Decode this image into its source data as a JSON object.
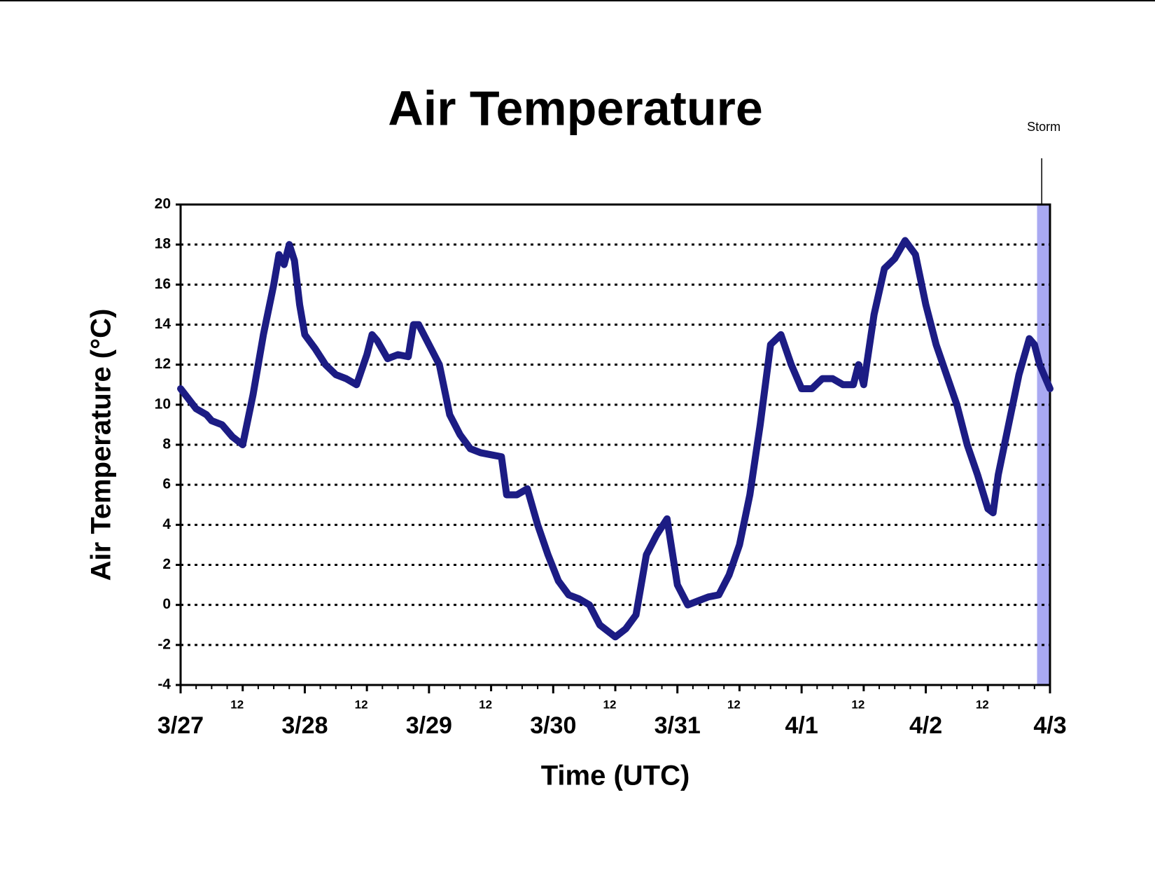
{
  "chart_data": {
    "type": "line",
    "title": "Air Temperature",
    "x_label": "Time (UTC)",
    "y_label": "Air Temperature (°C)",
    "x": [
      0,
      3,
      5,
      6,
      8,
      10,
      11,
      12,
      14,
      16,
      18,
      19,
      20,
      21,
      22,
      23,
      24,
      26,
      28,
      30,
      32,
      34,
      36,
      37,
      38,
      40,
      42,
      44,
      45,
      46,
      48,
      50,
      52,
      54,
      56,
      58,
      60,
      62,
      63,
      65,
      67,
      69,
      71,
      73,
      75,
      77,
      79,
      81,
      83,
      84,
      86,
      88,
      90,
      92,
      94,
      96,
      98,
      100,
      102,
      104,
      106,
      108,
      110,
      112,
      114,
      116,
      118,
      120,
      122,
      124,
      126,
      128,
      130,
      131,
      132,
      134,
      136,
      138,
      140,
      142,
      144,
      146,
      148,
      150,
      152,
      154,
      156,
      157,
      158,
      160,
      162,
      164,
      165,
      166,
      168
    ],
    "series": [
      {
        "name": "Air Temperature",
        "color": "#1c1c84",
        "values": [
          10.8,
          9.8,
          9.5,
          9.2,
          9.0,
          8.4,
          8.2,
          8.0,
          10.5,
          13.5,
          16.0,
          17.5,
          17.0,
          18.0,
          17.2,
          15.0,
          13.5,
          12.8,
          12.0,
          11.5,
          11.3,
          11.0,
          12.5,
          13.5,
          13.2,
          12.3,
          12.5,
          12.4,
          14.0,
          14.0,
          13.0,
          12.0,
          9.5,
          8.5,
          7.8,
          7.6,
          7.5,
          7.4,
          5.5,
          5.5,
          5.8,
          4.0,
          2.5,
          1.2,
          0.5,
          0.3,
          0,
          -1.0,
          -1.4,
          -1.6,
          -1.2,
          -0.5,
          2.5,
          3.5,
          4.3,
          1.0,
          0,
          0.2,
          0.4,
          0.5,
          1.5,
          3.0,
          5.5,
          9,
          13,
          13.5,
          12,
          10.8,
          10.8,
          11.3,
          11.3,
          11.0,
          11.0,
          12.0,
          11.0,
          14.5,
          16.8,
          17.3,
          18.2,
          17.5,
          15.0,
          13.0,
          11.5,
          10.0,
          8,
          6.5,
          4.8,
          4.6,
          6.5,
          9.0,
          11.5,
          13.3,
          13.0,
          12,
          10.8
        ]
      }
    ],
    "xlim": [
      0,
      168
    ],
    "xticks": [
      {
        "value": 0,
        "label": "3/27"
      },
      12,
      {
        "value": 24,
        "label": "3/28"
      },
      {
        "value": 36,
        "label": "12"
      },
      {
        "value": 48,
        "label": "3/29"
      },
      {
        "value": 60,
        "label": "12"
      },
      {
        "value": 72,
        "label": "3/30"
      },
      {
        "value": 84,
        "label": "12"
      },
      {
        "value": 96,
        "label": "3/31"
      },
      {
        "value": 108,
        "label": "12"
      },
      {
        "value": 120,
        "label": "4/1"
      },
      {
        "value": 132,
        "label": "12"
      },
      {
        "value": 144,
        "label": "4/2"
      },
      {
        "value": 156,
        "label": "12"
      },
      {
        "value": 168,
        "label": "4/3"
      }
    ],
    "xminorticks": [
      3,
      6,
      9,
      15,
      18,
      21,
      27,
      30,
      33,
      39,
      42,
      45,
      51,
      54,
      57,
      63,
      66,
      69,
      75,
      78,
      81,
      87,
      90,
      93,
      99,
      102,
      105,
      111,
      114,
      117,
      123,
      126,
      129,
      135,
      138,
      141,
      147,
      150,
      153,
      159,
      162,
      165
    ],
    "ylim": [
      -4,
      20
    ],
    "yticks": [
      -4,
      -2,
      0,
      2,
      4,
      6,
      8,
      10,
      12,
      14,
      16,
      18,
      20
    ],
    "grid": true,
    "shaded_regions": [
      {
        "xlim": [
          165.5,
          168
        ],
        "color": "#a9a9f2"
      }
    ],
    "annotations": [
      {
        "text": "Storm",
        "x": 166.4
      }
    ]
  }
}
